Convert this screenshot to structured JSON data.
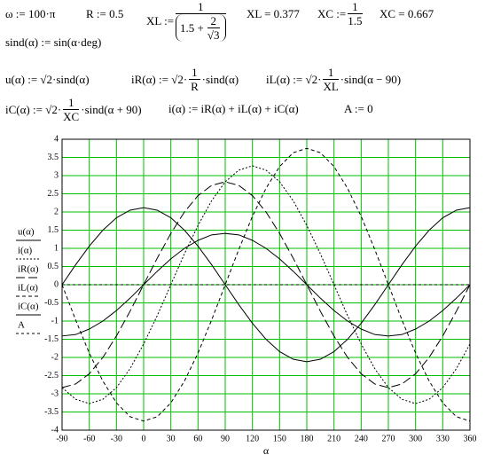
{
  "formulas": {
    "omega": "ω := 100·π",
    "R": "R := 0.5",
    "XL_def": {
      "lhs": "XL :=",
      "num": "1",
      "den_pre": "1.5 +",
      "den_num": "2",
      "den_den": "√3"
    },
    "XL_val": "XL = 0.377",
    "XC_def": {
      "lhs": "XC :=",
      "num": "1",
      "den": "1.5"
    },
    "XC_val": "XC = 0.667",
    "sind": "sind(α) := sin(α·deg)",
    "u": "u(α) := √2·sind(α)",
    "iR": {
      "lhs": "iR(α) := √2·",
      "num": "1",
      "den": "R",
      "rest": "·sind(α)"
    },
    "iL": {
      "lhs": "iL(α) := √2·",
      "num": "1",
      "den": "XL",
      "rest": "·sind(α − 90)"
    },
    "iC": {
      "lhs": "iC(α) := √2·",
      "num": "1",
      "den": "XC",
      "rest": "·sind(α + 90)"
    },
    "i": "i(α) := iR(α) + iL(α) + iC(α)",
    "A": "A := 0"
  },
  "chart_data": {
    "type": "line",
    "x_label": "α",
    "grid": true,
    "grid_color": "#00c000",
    "x": [
      -90,
      -75,
      -60,
      -45,
      -30,
      -15,
      0,
      15,
      30,
      45,
      60,
      75,
      90,
      105,
      120,
      135,
      150,
      165,
      180,
      195,
      210,
      225,
      240,
      255,
      270,
      285,
      300,
      315,
      330,
      345,
      360
    ],
    "xlim": [
      -90,
      360
    ],
    "xticks": [
      -90,
      -60,
      -30,
      0,
      30,
      60,
      90,
      120,
      150,
      180,
      210,
      240,
      270,
      300,
      330,
      360
    ],
    "ylim": [
      -4,
      4
    ],
    "yticks": [
      -4,
      -3.5,
      -3,
      -2.5,
      -2,
      -1.5,
      -1,
      -0.5,
      0,
      0.5,
      1,
      1.5,
      2,
      2.5,
      3,
      3.5,
      4
    ],
    "series": [
      {
        "name": "u(α)",
        "color": "#000000",
        "dash": "none",
        "values": [
          -1.41,
          -1.37,
          -1.22,
          -1,
          -0.71,
          -0.37,
          0,
          0.37,
          0.71,
          1,
          1.22,
          1.37,
          1.41,
          1.37,
          1.22,
          1,
          0.71,
          0.37,
          0,
          -0.37,
          -0.71,
          -1,
          -1.22,
          -1.37,
          -1.41,
          -1.37,
          -1.22,
          -1,
          -0.71,
          -0.37,
          0
        ]
      },
      {
        "name": "i(α)",
        "color": "#000000",
        "dash": "2,2",
        "values": [
          -2.83,
          -3.15,
          -3.27,
          -3.15,
          -2.83,
          -2.31,
          -1.63,
          -0.85,
          0,
          0.85,
          1.63,
          2.31,
          2.83,
          3.15,
          3.27,
          3.15,
          2.83,
          2.31,
          1.63,
          0.85,
          0,
          -0.85,
          -1.63,
          -2.31,
          -2.83,
          -3.15,
          -3.27,
          -3.15,
          -2.83,
          -2.31,
          -1.63
        ]
      },
      {
        "name": "iR(α)",
        "color": "#000000",
        "dash": "10,4",
        "values": [
          -2.83,
          -2.73,
          -2.45,
          -2,
          -1.41,
          -0.73,
          0,
          0.73,
          1.41,
          2,
          2.45,
          2.73,
          2.83,
          2.73,
          2.45,
          2,
          1.41,
          0.73,
          0,
          -0.73,
          -1.41,
          -2,
          -2.45,
          -2.73,
          -2.83,
          -2.73,
          -2.45,
          -2,
          -1.41,
          -0.73,
          0
        ]
      },
      {
        "name": "iL(α)",
        "color": "#000000",
        "dash": "4,3",
        "values": [
          0,
          -0.97,
          -1.88,
          -2.65,
          -3.25,
          -3.63,
          -3.75,
          -3.63,
          -3.25,
          -2.65,
          -1.88,
          -0.97,
          0,
          0.97,
          1.88,
          2.65,
          3.25,
          3.63,
          3.75,
          3.63,
          3.25,
          2.65,
          1.88,
          0.97,
          0,
          -0.97,
          -1.88,
          -2.65,
          -3.25,
          -3.63,
          -3.75
        ]
      },
      {
        "name": "iC(α)",
        "color": "#000000",
        "dash": "none",
        "values": [
          0,
          0.55,
          1.06,
          1.5,
          1.84,
          2.05,
          2.12,
          2.05,
          1.84,
          1.5,
          1.06,
          0.55,
          0,
          -0.55,
          -1.06,
          -1.5,
          -1.84,
          -2.05,
          -2.12,
          -2.05,
          -1.84,
          -1.5,
          -1.06,
          -0.55,
          0,
          0.55,
          1.06,
          1.5,
          1.84,
          2.05,
          2.12
        ]
      },
      {
        "name": "A",
        "color": "#000000",
        "dash": "3,3",
        "values": [
          0,
          0,
          0,
          0,
          0,
          0,
          0,
          0,
          0,
          0,
          0,
          0,
          0,
          0,
          0,
          0,
          0,
          0,
          0,
          0,
          0,
          0,
          0,
          0,
          0,
          0,
          0,
          0,
          0,
          0,
          0
        ]
      }
    ]
  }
}
